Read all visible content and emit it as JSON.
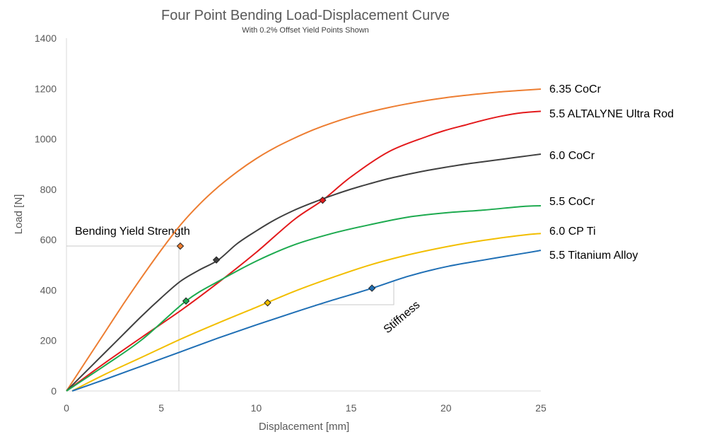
{
  "chart_data": {
    "type": "line",
    "title": "Four Point Bending Load-Displacement Curve",
    "subtitle": "With 0.2% Offset Yield Points Shown",
    "xlabel": "Displacement [mm]",
    "ylabel": "Load [N]",
    "xlim": [
      0,
      25
    ],
    "ylim": [
      0,
      1400
    ],
    "xticks": [
      "0",
      "5",
      "10",
      "15",
      "20",
      "25"
    ],
    "yticks": [
      "0",
      "200",
      "400",
      "600",
      "800",
      "1000",
      "1200",
      "1400"
    ],
    "grid": false,
    "series": [
      {
        "name": "6.35 CoCr",
        "color": "#ED7D31",
        "x": [
          0,
          1,
          2,
          3,
          4,
          5,
          6,
          7,
          8,
          9,
          10,
          11,
          12,
          13,
          14,
          15,
          16,
          17,
          18,
          19,
          20,
          21,
          22,
          23,
          24,
          25
        ],
        "y": [
          0,
          115,
          230,
          345,
          455,
          560,
          658,
          740,
          810,
          870,
          922,
          966,
          1003,
          1036,
          1064,
          1088,
          1108,
          1125,
          1140,
          1153,
          1164,
          1173,
          1181,
          1188,
          1193,
          1198
        ],
        "yield_point": [
          6.0,
          575
        ]
      },
      {
        "name": "5.5 ALTALYNE Ultra Rod",
        "color": "#E31A1C",
        "x": [
          0,
          2,
          4,
          6,
          8,
          10,
          12,
          13.5,
          15,
          17,
          19,
          20,
          21,
          22,
          23,
          24,
          25
        ],
        "y": [
          0,
          110,
          215,
          318,
          430,
          550,
          680,
          757,
          850,
          950,
          1010,
          1035,
          1055,
          1075,
          1092,
          1104,
          1110
        ],
        "yield_point": [
          13.5,
          757
        ]
      },
      {
        "name": "6.0 CoCr",
        "color": "#404040",
        "x": [
          0,
          1,
          2,
          3,
          4,
          5,
          6,
          7,
          8,
          9,
          10,
          11,
          12,
          13,
          14,
          15,
          16,
          17,
          18,
          19,
          20,
          21,
          22,
          23,
          24,
          25
        ],
        "y": [
          0,
          75,
          150,
          225,
          300,
          370,
          435,
          480,
          520,
          585,
          635,
          680,
          717,
          748,
          776,
          801,
          823,
          843,
          860,
          875,
          888,
          900,
          910,
          920,
          930,
          940
        ],
        "yield_point": [
          7.9,
          520
        ]
      },
      {
        "name": "5.5 CoCr",
        "color": "#1DAA4F",
        "x": [
          0,
          2,
          4,
          6.3,
          8,
          10,
          12,
          14,
          16,
          18,
          20,
          22,
          24,
          25
        ],
        "y": [
          0,
          100,
          205,
          357,
          435,
          515,
          580,
          625,
          660,
          690,
          707,
          718,
          732,
          735
        ],
        "yield_point": [
          6.3,
          357
        ]
      },
      {
        "name": "6.0 CP Ti",
        "color": "#F2BE00",
        "x": [
          0.3,
          2,
          4,
          6,
          8,
          10,
          12,
          14,
          16,
          18,
          20,
          22,
          24,
          25
        ],
        "y": [
          0,
          65,
          135,
          205,
          270,
          332,
          395,
          450,
          500,
          540,
          572,
          598,
          618,
          625
        ],
        "yield_point": [
          10.6,
          350
        ]
      },
      {
        "name": "5.5 Titanium Alloy",
        "color": "#1F6FB5",
        "x": [
          0.3,
          2,
          4,
          6,
          8,
          10,
          12,
          14,
          16,
          18,
          20,
          22,
          24,
          25
        ],
        "y": [
          0,
          45,
          100,
          155,
          210,
          262,
          312,
          360,
          405,
          455,
          493,
          520,
          545,
          558
        ],
        "yield_point": [
          16.1,
          408
        ]
      }
    ],
    "annotations": [
      {
        "text": "Bending Yield Strength"
      },
      {
        "text": "Stiffness"
      }
    ]
  }
}
